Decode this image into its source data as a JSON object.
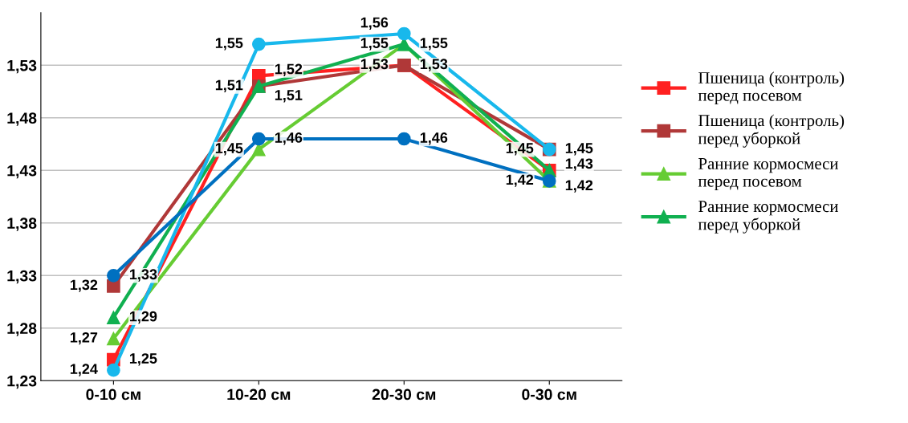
{
  "chart_data": {
    "type": "line",
    "categories": [
      "0-10 см",
      "10-20 см",
      "20-30 см",
      "0-30 см"
    ],
    "series": [
      {
        "name": "Пшеница (контроль) перед посевом",
        "color": "#ff2020",
        "marker": "square",
        "values": [
          1.25,
          1.52,
          1.53,
          1.43
        ],
        "value_labels": [
          "1,25",
          "1,52",
          "1,53",
          "1,43"
        ]
      },
      {
        "name": "Пшеница (контроль) перед уборкой",
        "color": "#b03838",
        "marker": "square",
        "values": [
          1.32,
          1.51,
          1.53,
          1.45
        ],
        "value_labels": [
          "1,32",
          "1,51",
          "1,53",
          "1,45"
        ]
      },
      {
        "name": "Ранние кормосмеси перед посевом",
        "color": "#66cc33",
        "marker": "triangle",
        "values": [
          1.27,
          1.45,
          1.55,
          1.42
        ],
        "value_labels": [
          "1,27",
          "1,45",
          "1,55",
          "1,42"
        ]
      },
      {
        "name": "Ранние кормосмеси перед уборкой",
        "color": "#10b050",
        "marker": "triangle",
        "values": [
          1.29,
          1.51,
          1.55,
          1.43
        ],
        "value_labels": [
          "1,29",
          "1,51",
          "1,55",
          null
        ]
      },
      {
        "color": "#18b8ec",
        "marker": "circle",
        "values": [
          1.24,
          1.55,
          1.56,
          1.45
        ],
        "value_labels": [
          "1,24",
          "1,55",
          "1,56",
          "1,45"
        ]
      },
      {
        "color": "#0070c0",
        "marker": "circle",
        "values": [
          1.33,
          1.46,
          1.46,
          1.42
        ],
        "value_labels": [
          "1,33",
          "1,46",
          "1,46",
          "1,42"
        ]
      }
    ],
    "ylim": [
      1.23,
      1.58
    ],
    "yticks": [
      {
        "value": 1.23,
        "label": "1,23"
      },
      {
        "value": 1.28,
        "label": "1,28"
      },
      {
        "value": 1.33,
        "label": "1,33"
      },
      {
        "value": 1.38,
        "label": "1,38"
      },
      {
        "value": 1.43,
        "label": "1,43"
      },
      {
        "value": 1.48,
        "label": "1,48"
      },
      {
        "value": 1.53,
        "label": "1,53"
      }
    ],
    "grid": "y",
    "legend": "right",
    "line_style": "solid"
  }
}
